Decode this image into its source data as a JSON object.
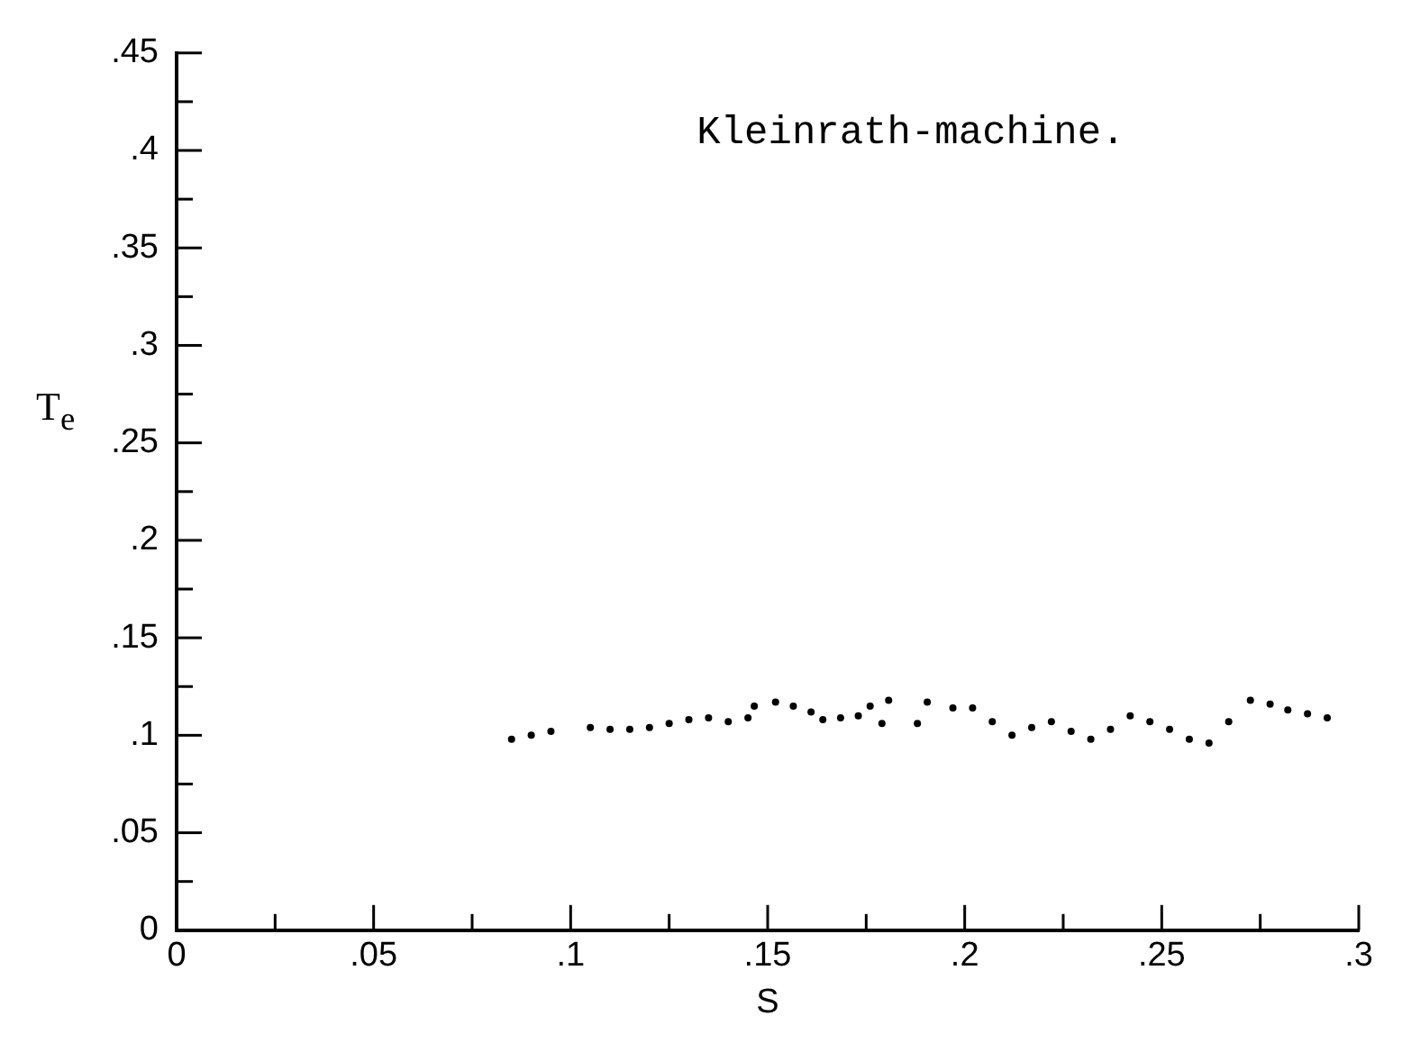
{
  "chart_data": {
    "type": "scatter",
    "xlabel": "S",
    "ylabel": "T$_{e}$",
    "annotations": [
      "Kleinrath-machine."
    ],
    "x": [
      0.085,
      0.09,
      0.095,
      0.105,
      0.11,
      0.115,
      0.12,
      0.125,
      0.13,
      0.135,
      0.14,
      0.145,
      0.1466,
      0.152,
      0.1565,
      0.161,
      0.164,
      0.1685,
      0.173,
      0.176,
      0.179,
      0.1807,
      0.188,
      0.1905,
      0.197,
      0.202,
      0.207,
      0.212,
      0.217,
      0.222,
      0.227,
      0.232,
      0.237,
      0.242,
      0.247,
      0.252,
      0.257,
      0.262,
      0.267,
      0.2725,
      0.2775,
      0.282,
      0.287,
      0.292
    ],
    "values": [
      0.098,
      0.1,
      0.102,
      0.104,
      0.103,
      0.103,
      0.104,
      0.106,
      0.108,
      0.109,
      0.107,
      0.109,
      0.115,
      0.117,
      0.115,
      0.112,
      0.108,
      0.109,
      0.11,
      0.115,
      0.106,
      0.118,
      0.106,
      0.117,
      0.114,
      0.114,
      0.107,
      0.1,
      0.104,
      0.107,
      0.102,
      0.098,
      0.103,
      0.11,
      0.107,
      0.103,
      0.098,
      0.096,
      0.107,
      0.118,
      0.116,
      0.113,
      0.111,
      0.109
    ],
    "color": "#000000",
    "marker": "circle",
    "grid": false,
    "legend": false,
    "xlim": [
      0,
      0.3
    ],
    "xticks": [
      0,
      {
        "value": 0.025,
        "label": null
      },
      {
        "value": 0.05,
        "label": ".05"
      },
      {
        "value": 0.075,
        "label": null
      },
      {
        "value": 0.1,
        "label": ".1"
      },
      {
        "value": 0.125,
        "label": null
      },
      {
        "value": 0.15,
        "label": ".15"
      },
      {
        "value": 0.175,
        "label": null
      },
      {
        "value": 0.2,
        "label": ".2"
      },
      {
        "value": 0.225,
        "label": null
      },
      {
        "value": 0.25,
        "label": ".25"
      },
      {
        "value": 0.275,
        "label": null
      },
      {
        "value": 0.3,
        "label": ".3"
      }
    ],
    "ylim": [
      0,
      0.45
    ],
    "yticks": [
      0,
      {
        "value": 0.025,
        "label": null
      },
      {
        "value": 0.05,
        "label": ".05"
      },
      {
        "value": 0.075,
        "label": null
      },
      {
        "value": 0.1,
        "label": ".1"
      },
      {
        "value": 0.125,
        "label": null
      },
      {
        "value": 0.15,
        "label": ".15"
      },
      {
        "value": 0.175,
        "label": null
      },
      {
        "value": 0.2,
        "label": ".2"
      },
      {
        "value": 0.225,
        "label": null
      },
      {
        "value": 0.25,
        "label": ".25"
      },
      {
        "value": 0.275,
        "label": null
      },
      {
        "value": 0.3,
        "label": ".3"
      },
      {
        "value": 0.325,
        "label": null
      },
      {
        "value": 0.35,
        "label": ".35"
      },
      {
        "value": 0.375,
        "label": null
      },
      {
        "value": 0.4,
        "label": ".4"
      },
      {
        "value": 0.425,
        "label": null
      },
      {
        "value": 0.45,
        "label": ".45"
      }
    ]
  }
}
